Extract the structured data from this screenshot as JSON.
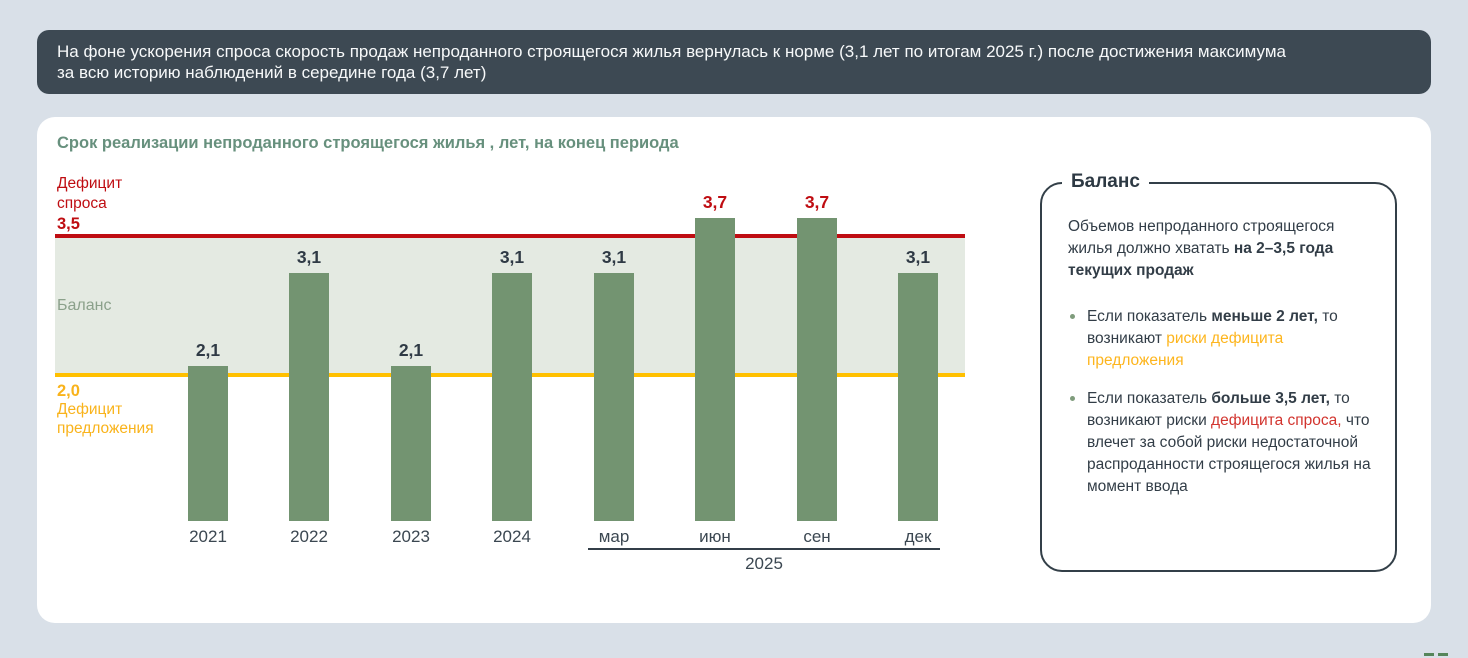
{
  "banner": {
    "lines": [
      "На фоне ускорения спроса скорость продаж непроданного строящегося жилья вернулась к норме (3,1 лет по итогам 2025 г.) после достижения максимума",
      "за всю историю наблюдений в середине года (3,7 лет)"
    ]
  },
  "chart_data": {
    "type": "bar",
    "title": "Срок реализации непроданного строящегося жилья , лет, на конец периода",
    "categories": [
      "2021",
      "2022",
      "2023",
      "2024",
      "мар",
      "июн",
      "сен",
      "дек"
    ],
    "values": [
      2.1,
      3.1,
      2.1,
      3.1,
      3.1,
      3.7,
      3.7,
      3.1
    ],
    "value_labels": [
      "2,1",
      "3,1",
      "2,1",
      "3,1",
      "3,1",
      "3,7",
      "3,7",
      "3,1"
    ],
    "group_axis": {
      "label": "2025",
      "from_index": 4,
      "to_index": 7
    },
    "thresholds": {
      "upper": {
        "value": 3.5,
        "label": "3,5",
        "name": "Дефицит спроса",
        "color": "#bf0d12"
      },
      "lower": {
        "value": 2.0,
        "label": "2,0",
        "name": "Дефицит предложения",
        "color": "#ffc000"
      }
    },
    "band_label": "Баланс",
    "bar_color": "#739471",
    "band_color": "#e4eae2",
    "ylim": [
      0,
      4
    ],
    "grid": false,
    "legend": false
  },
  "panel": {
    "title": "Баланс",
    "intro": [
      {
        "text": "Объемов непроданного строящегося жилья должно хватать ",
        "style": "normal"
      },
      {
        "text": "на 2–3,5 года текущих продаж",
        "style": "bold"
      }
    ],
    "bullets": [
      {
        "parts": [
          {
            "text": "Если показатель ",
            "style": "normal"
          },
          {
            "text": "меньше 2 лет,",
            "style": "bold"
          },
          {
            "text": " то возникают ",
            "style": "normal"
          },
          {
            "text": "риски дефицита предложения",
            "style": "yellow"
          }
        ]
      },
      {
        "parts": [
          {
            "text": "Если показатель ",
            "style": "normal"
          },
          {
            "text": "больше 3,5 лет,",
            "style": "bold"
          },
          {
            "text": " то возникают риски ",
            "style": "normal"
          },
          {
            "text": "дефицита спроса,",
            "style": "red"
          },
          {
            "text": " что влечет за собой риски недостаточной распроданности строящегося жилья на момент ввода",
            "style": "normal"
          }
        ]
      }
    ]
  }
}
